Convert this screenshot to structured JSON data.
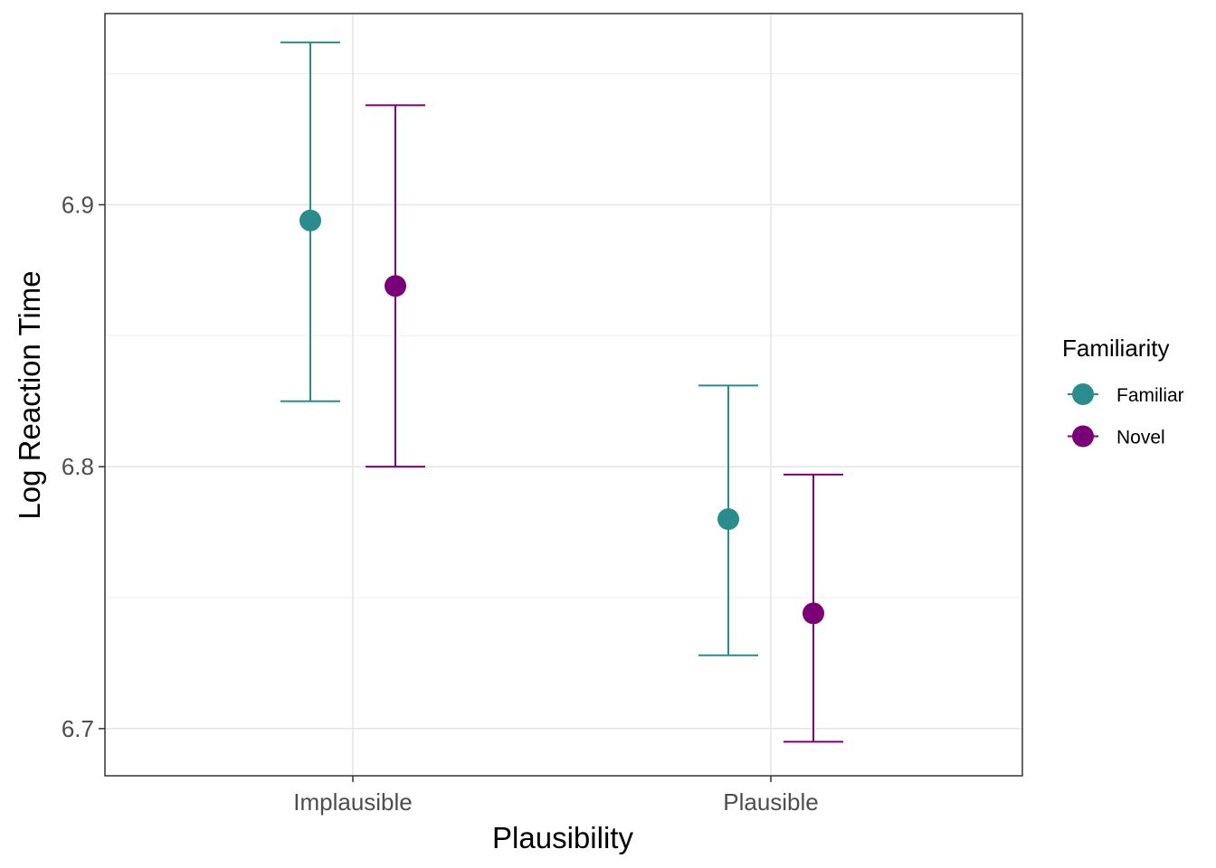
{
  "chart_data": {
    "type": "scatter",
    "title": "",
    "xlabel": "Plausibility",
    "ylabel": "Log Reaction Time",
    "categories": [
      "Implausible",
      "Plausible"
    ],
    "ylim": [
      6.682,
      6.973
    ],
    "yticks": [
      6.7,
      6.8,
      6.9
    ],
    "ytick_labels": [
      "6.7",
      "6.8",
      "6.9"
    ],
    "grid": true,
    "legend": {
      "title": "Familiarity",
      "position": "right"
    },
    "series": [
      {
        "name": "Familiar",
        "color": "#2a8c8c",
        "values": [
          6.894,
          6.78
        ],
        "lower": [
          6.825,
          6.728
        ],
        "upper": [
          6.962,
          6.831
        ]
      },
      {
        "name": "Novel",
        "color": "#7b0077",
        "values": [
          6.869,
          6.744
        ],
        "lower": [
          6.8,
          6.695
        ],
        "upper": [
          6.938,
          6.797
        ]
      }
    ]
  }
}
